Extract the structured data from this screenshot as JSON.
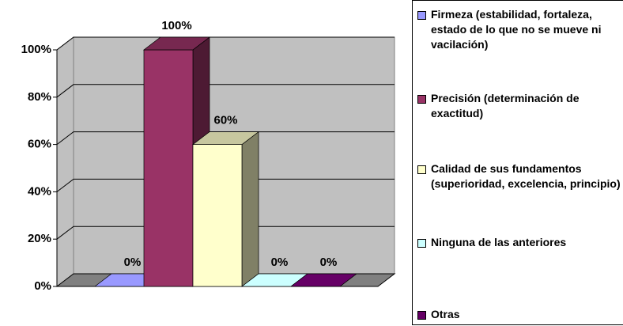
{
  "chart_data": {
    "type": "bar3d",
    "series": [
      {
        "name": "Firmeza (estabilidad, fortaleza, estado de lo que no se mueve ni vacilación)",
        "color": "#9999ff",
        "values": [
          0
        ],
        "value_labels": [
          "0%"
        ]
      },
      {
        "name": "Precisión (determinación de exactitud)",
        "color": "#993366",
        "values": [
          100
        ],
        "value_labels": [
          "100%"
        ]
      },
      {
        "name": "Calidad de sus fundamentos (superioridad, excelencia, principio)",
        "color": "#ffffcc",
        "values": [
          60
        ],
        "value_labels": [
          "60%"
        ]
      },
      {
        "name": "Ninguna de las anteriores",
        "color": "#ccffff",
        "values": [
          0
        ],
        "value_labels": [
          "0%"
        ]
      },
      {
        "name": "Otras",
        "color": "#660066",
        "values": [
          0
        ],
        "value_labels": [
          "0%"
        ]
      }
    ],
    "ylim": [
      0,
      100
    ],
    "yticks": [
      {
        "value": 0,
        "label": "0%"
      },
      {
        "value": 20,
        "label": "20%"
      },
      {
        "value": 40,
        "label": "40%"
      },
      {
        "value": 60,
        "label": "60%"
      },
      {
        "value": 80,
        "label": "80%"
      },
      {
        "value": 100,
        "label": "100%"
      }
    ],
    "grid": true,
    "legend": "right"
  }
}
